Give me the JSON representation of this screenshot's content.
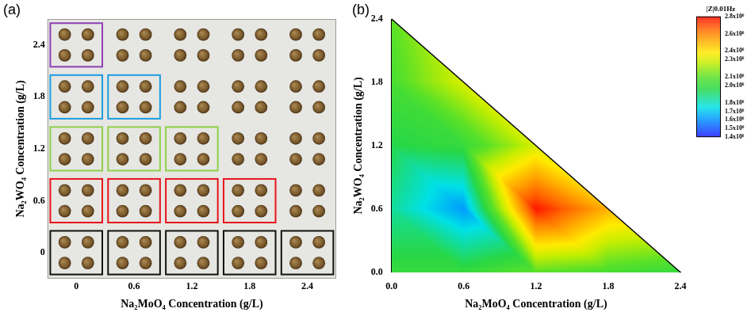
{
  "chart_data": [
    {
      "type": "scatter",
      "panel": "(a)",
      "x_label": "Na₂MoO₄ Concentration (g/L)",
      "y_label": "Na₂WO₄ Concentration (g/L)",
      "xlim": [
        -0.3,
        2.7
      ],
      "ylim": [
        -0.3,
        2.7
      ],
      "xticks": [
        0,
        0.6,
        1.2,
        1.8,
        2.4
      ],
      "yticks": [
        0,
        0.6,
        1.2,
        1.8,
        2.4
      ],
      "grid": false,
      "replicates": 4,
      "x": [
        0,
        0.6,
        1.2,
        1.8,
        2.4,
        0,
        0.6,
        1.2,
        1.8,
        2.4,
        0,
        0.6,
        1.2,
        1.8,
        2.4,
        0,
        0.6,
        1.2,
        1.8,
        2.4,
        0,
        0.6,
        1.2,
        1.8,
        2.4
      ],
      "values": [
        0,
        0,
        0,
        0,
        0,
        0.6,
        0.6,
        0.6,
        0.6,
        0.6,
        1.2,
        1.2,
        1.2,
        1.2,
        1.2,
        1.8,
        1.8,
        1.8,
        1.8,
        1.8,
        2.4,
        2.4,
        2.4,
        2.4,
        2.4
      ],
      "colors": [
        "#111111",
        "#111111",
        "#111111",
        "#111111",
        "#111111",
        "#e8141c",
        "#e8141c",
        "#e8141c",
        "#e8141c",
        null,
        "#8ed04a",
        "#8ed04a",
        "#8ed04a",
        null,
        null,
        "#1a9de0",
        "#1a9de0",
        null,
        null,
        null,
        "#8e3fb5",
        null,
        null,
        null,
        null
      ]
    },
    {
      "type": "heatmap",
      "panel": "(b)",
      "x_label": "Na₂MoO₄ Concentration (g/L)",
      "y_label": "Na₂WO₄ Concentration (g/L)",
      "xlim": [
        0,
        2.4
      ],
      "ylim": [
        0,
        2.4
      ],
      "xticks": [
        {
          "value": 0,
          "label": "0.0"
        },
        0.6,
        1.2,
        1.8,
        2.4
      ],
      "yticks": [
        {
          "value": 0,
          "label": "0.0"
        },
        0.6,
        1.2,
        1.8,
        2.4
      ],
      "grid": false,
      "cells": [
        {
          "x": 0,
          "y": 0,
          "value": 2000000
        },
        {
          "x": 0.6,
          "y": 0,
          "value": 2000000
        },
        {
          "x": 1.2,
          "y": 0,
          "value": 2100000
        },
        {
          "x": 1.8,
          "y": 0,
          "value": 2050000
        },
        {
          "x": 2.4,
          "y": 0,
          "value": 2000000
        },
        {
          "x": 0,
          "y": 0.6,
          "value": 1850000
        },
        {
          "x": 0.6,
          "y": 0.6,
          "value": 1620000
        },
        {
          "x": 1.2,
          "y": 0.6,
          "value": 2780000
        },
        {
          "x": 1.8,
          "y": 0.6,
          "value": 2500000
        },
        {
          "x": 0,
          "y": 1.2,
          "value": 1950000
        },
        {
          "x": 0.6,
          "y": 1.2,
          "value": 2000000
        },
        {
          "x": 1.2,
          "y": 1.2,
          "value": 2300000
        },
        {
          "x": 0,
          "y": 1.8,
          "value": 2050000
        },
        {
          "x": 0.6,
          "y": 1.8,
          "value": 2300000
        },
        {
          "x": 0,
          "y": 2.4,
          "value": 2100000
        }
      ],
      "colorbar": {
        "title": "|Z|0.01Hz",
        "range": [
          1400000,
          2800000
        ],
        "ticks": [
          {
            "value": 2800000,
            "label": "2.8x10⁶"
          },
          {
            "value": 2600000,
            "label": "2.6x10⁶"
          },
          {
            "value": 2400000,
            "label": "2.4x10⁶"
          },
          {
            "value": 2300000,
            "label": "2.3x10⁶"
          },
          {
            "value": 2100000,
            "label": "2.1x10⁶"
          },
          {
            "value": 2000000,
            "label": "2.0x10⁶"
          },
          {
            "value": 1800000,
            "label": "1.8x10⁶"
          },
          {
            "value": 1700000,
            "label": "1.7x10⁶"
          },
          {
            "value": 1600000,
            "label": "1.6x10⁶"
          },
          {
            "value": 1500000,
            "label": "1.5x10⁶"
          },
          {
            "value": 1400000,
            "label": "1.4x10⁶"
          }
        ]
      }
    }
  ]
}
